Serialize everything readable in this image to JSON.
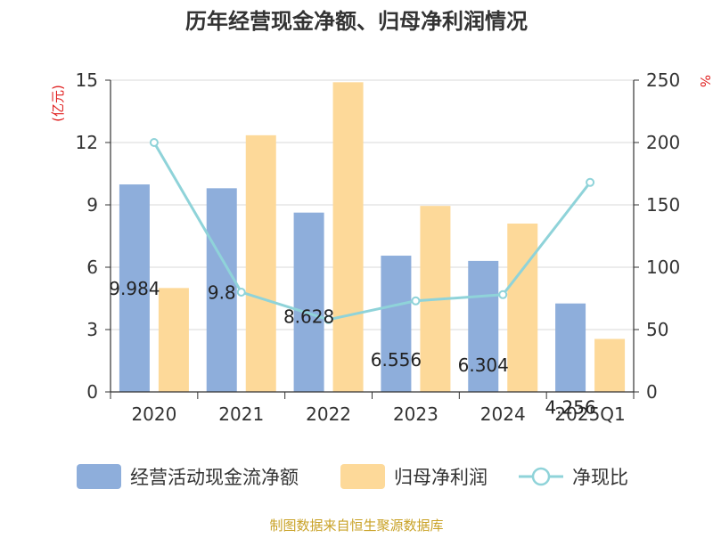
{
  "chart_data": {
    "type": "bar",
    "title": "历年经营现金净额、归母净利润情况",
    "categories": [
      "2020",
      "2021",
      "2022",
      "2023",
      "2024",
      "2025Q1"
    ],
    "y_left_label": "(亿元)",
    "y_right_label": "%",
    "y_left_range": [
      0,
      15
    ],
    "y_left_ticks": [
      0,
      3,
      6,
      9,
      12,
      15
    ],
    "y_right_range": [
      0,
      250
    ],
    "y_right_ticks": [
      0,
      50,
      100,
      150,
      200,
      250
    ],
    "grid": true,
    "legend_position": "bottom",
    "series": [
      {
        "name": "经营活动现金流净额",
        "type": "bar",
        "axis": "left",
        "color": "#8eaedb",
        "values": [
          9.984,
          9.8,
          8.628,
          6.556,
          6.304,
          4.256
        ],
        "data_labels": [
          "9.984",
          "9.8",
          "8.628",
          "6.556",
          "6.304",
          "4.256"
        ]
      },
      {
        "name": "归母净利润",
        "type": "bar",
        "axis": "left",
        "color": "#fdd999",
        "values": [
          5.0,
          12.35,
          14.9,
          8.95,
          8.1,
          2.55
        ]
      },
      {
        "name": "净现比",
        "type": "line",
        "axis": "right",
        "color": "#8fd3d9",
        "values": [
          200,
          80,
          58,
          73,
          78,
          168
        ]
      }
    ],
    "source": "制图数据来自恒生聚源数据库"
  }
}
